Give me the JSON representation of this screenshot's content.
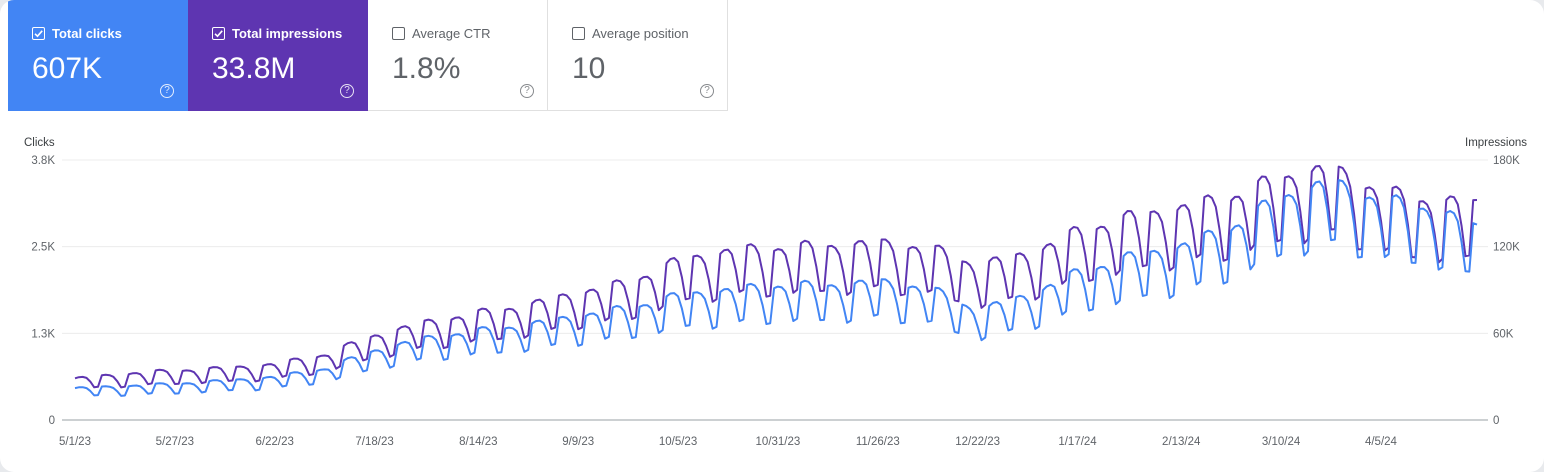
{
  "metrics": [
    {
      "label": "Total clicks",
      "value": "607K",
      "selected": true,
      "color": "#4285f4"
    },
    {
      "label": "Total impressions",
      "value": "33.8M",
      "selected": true,
      "color": "#5e35b1"
    },
    {
      "label": "Average CTR",
      "value": "1.8%",
      "selected": false
    },
    {
      "label": "Average position",
      "value": "10",
      "selected": false
    }
  ],
  "help_glyph": "?",
  "chart_data": {
    "type": "line",
    "left_axis_label": "Clicks",
    "right_axis_label": "Impressions",
    "left_ticks": [
      "0",
      "1.3K",
      "2.5K",
      "3.8K"
    ],
    "right_ticks": [
      "0",
      "60K",
      "120K",
      "180K"
    ],
    "ylim_left": [
      0,
      3800
    ],
    "ylim_right": [
      0,
      180000
    ],
    "x_tick_labels": [
      "5/1/23",
      "5/27/23",
      "6/22/23",
      "7/18/23",
      "8/14/23",
      "9/9/23",
      "10/5/23",
      "10/31/23",
      "11/26/23",
      "12/22/23",
      "1/17/24",
      "2/13/24",
      "3/10/24",
      "4/5/24"
    ],
    "x_range": [
      "2023-05-01",
      "2024-04-30"
    ],
    "grid": true,
    "series": [
      {
        "name": "Clicks",
        "axis": "left",
        "color": "#4285f4",
        "x": [
          "2023-05-01",
          "2023-05-14",
          "2023-05-27",
          "2023-06-09",
          "2023-06-22",
          "2023-07-05",
          "2023-07-18",
          "2023-07-31",
          "2023-08-14",
          "2023-08-27",
          "2023-09-09",
          "2023-09-22",
          "2023-10-05",
          "2023-10-18",
          "2023-10-31",
          "2023-11-13",
          "2023-11-26",
          "2023-12-09",
          "2023-12-22",
          "2024-01-04",
          "2024-01-17",
          "2024-01-30",
          "2024-02-13",
          "2024-02-26",
          "2024-03-10",
          "2024-03-23",
          "2024-04-05",
          "2024-04-18",
          "2024-04-30"
        ],
        "values": [
          420,
          450,
          480,
          520,
          570,
          680,
          920,
          1080,
          1180,
          1260,
          1380,
          1480,
          1650,
          1720,
          1780,
          1780,
          1830,
          1750,
          1450,
          1650,
          1950,
          2150,
          2300,
          2550,
          2950,
          3150,
          2900,
          2800,
          2550
        ]
      },
      {
        "name": "Impressions",
        "axis": "right",
        "color": "#5e35b1",
        "x": [
          "2023-05-01",
          "2023-05-14",
          "2023-05-27",
          "2023-06-09",
          "2023-06-22",
          "2023-07-05",
          "2023-07-18",
          "2023-07-31",
          "2023-08-14",
          "2023-08-27",
          "2023-09-09",
          "2023-09-22",
          "2023-10-05",
          "2023-10-18",
          "2023-10-31",
          "2023-11-13",
          "2023-11-26",
          "2023-12-09",
          "2023-12-22",
          "2024-01-04",
          "2024-01-17",
          "2024-01-30",
          "2024-02-13",
          "2024-02-26",
          "2024-03-10",
          "2024-03-23",
          "2024-04-05",
          "2024-04-18",
          "2024-04-30"
        ],
        "values": [
          26000,
          29000,
          31000,
          32500,
          35000,
          41000,
          53000,
          61000,
          67000,
          72000,
          80000,
          86000,
          100000,
          106000,
          108000,
          109000,
          111000,
          108000,
          97000,
          104000,
          118000,
          127000,
          133000,
          140000,
          152000,
          158000,
          143000,
          137000,
          136000
        ]
      }
    ]
  }
}
